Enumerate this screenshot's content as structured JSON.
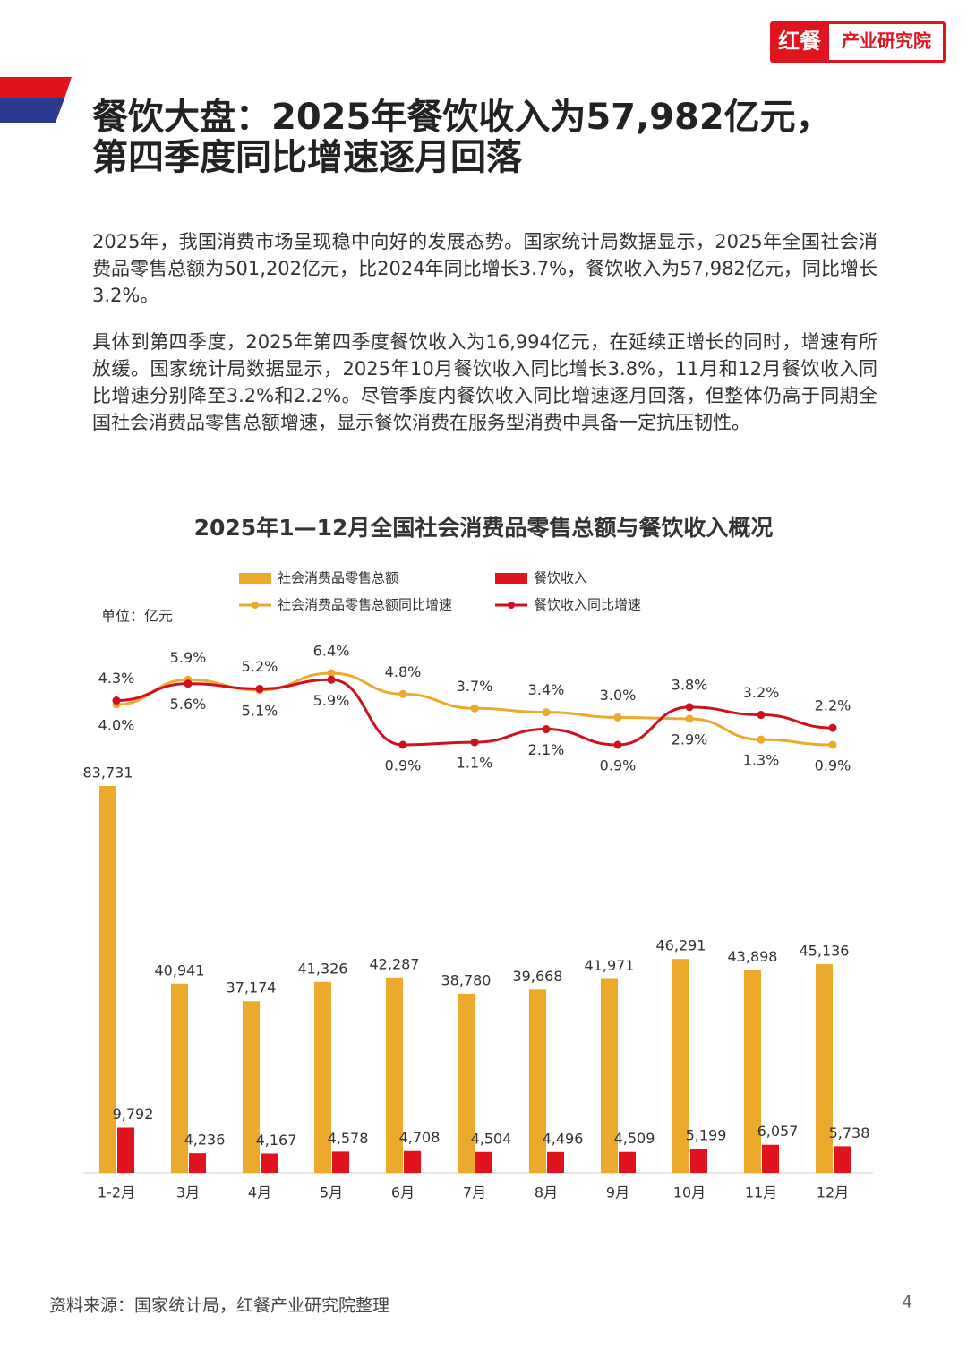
{
  "header": {
    "brand": "红餐",
    "brand_sub": "产业研究院",
    "title_line1": "餐饮大盘：2025年餐饮收入为57,982亿元，",
    "title_line2": "第四季度同比增速逐月回落"
  },
  "paragraphs": [
    "2025年，我国消费市场呈现稳中向好的发展态势。国家统计局数据显示，2025年全国社会消费品零售总额为501,202亿元，比2024年同比增长3.7%，餐饮收入为57,982亿元，同比增长3.2%。",
    "具体到第四季度，2025年第四季度餐饮收入为16,994亿元，在延续正增长的同时，增速有所放缓。国家统计局数据显示，2025年10月餐饮收入同比增长3.8%，11月和12月餐饮收入同比增速分别降至3.2%和2.2%。尽管季度内餐饮收入同比增速逐月回落，但整体仍高于同期全国社会消费品零售总额增速，显示餐饮消费在服务型消费中具备一定抗压韧性。"
  ],
  "chart_data": {
    "type": "bar",
    "title": "2025年1—12月全国社会消费品零售总额与餐饮收入概况",
    "unit": "单位：亿元",
    "categories": [
      "1-2月",
      "3月",
      "4月",
      "5月",
      "6月",
      "7月",
      "8月",
      "9月",
      "10月",
      "11月",
      "12月"
    ],
    "series": [
      {
        "name": "社会消费品零售总额",
        "type": "bar",
        "color": "#EBAA2C",
        "values": [
          83731,
          40941,
          37174,
          41326,
          42287,
          38780,
          39668,
          41971,
          46291,
          43898,
          45136
        ],
        "value_labels": [
          "83,731",
          "40,941",
          "37,174",
          "41,326",
          "42,287",
          "38,780",
          "39,668",
          "41,971",
          "46,291",
          "43,898",
          "45,136"
        ]
      },
      {
        "name": "餐饮收入",
        "type": "bar",
        "color": "#E0141E",
        "values": [
          9792,
          4236,
          4167,
          4578,
          4708,
          4504,
          4496,
          4509,
          5199,
          6057,
          5738
        ],
        "value_labels": [
          "9,792",
          "4,236",
          "4,167",
          "4,578",
          "4,708",
          "4,504",
          "4,496",
          "4,509",
          "5,199",
          "6,057",
          "5,738"
        ]
      },
      {
        "name": "社会消费品零售总额同比增速",
        "type": "line",
        "color": "#EBAA2C",
        "values": [
          4.0,
          5.9,
          5.1,
          6.4,
          4.8,
          3.7,
          3.4,
          3.0,
          2.9,
          1.3,
          0.9
        ],
        "value_labels": [
          "4.0%",
          "5.9%",
          "5.1%",
          "6.4%",
          "4.8%",
          "3.7%",
          "3.4%",
          "3.0%",
          "2.9%",
          "1.3%",
          "0.9%"
        ]
      },
      {
        "name": "餐饮收入同比增速",
        "type": "line",
        "color": "#D0101E",
        "values": [
          4.3,
          5.6,
          5.2,
          5.9,
          0.9,
          1.1,
          2.1,
          0.9,
          3.8,
          3.2,
          2.2
        ],
        "value_labels": [
          "4.3%",
          "5.6%",
          "5.2%",
          "5.9%",
          "0.9%",
          "1.1%",
          "2.1%",
          "0.9%",
          "3.8%",
          "3.2%",
          "2.2%"
        ]
      }
    ]
  },
  "footer": {
    "source": "资料来源：国家统计局，红餐产业研究院整理",
    "page": "4"
  }
}
